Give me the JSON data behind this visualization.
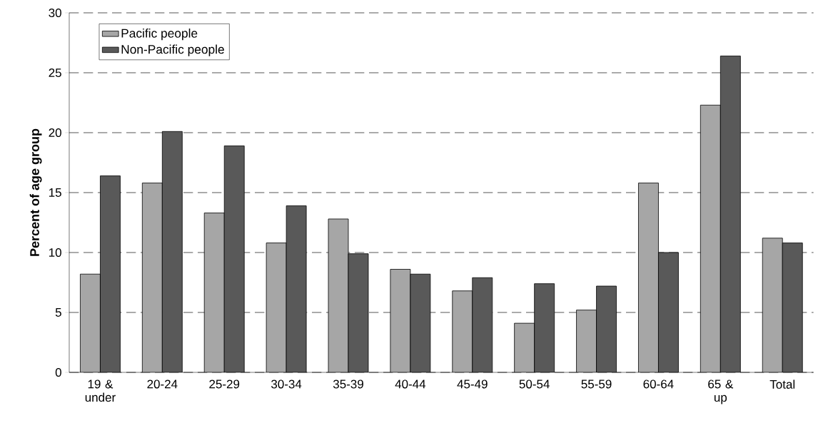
{
  "chart_data": {
    "type": "bar",
    "ylabel": "Percent of age group",
    "categories": [
      "19 & under",
      "20-24",
      "25-29",
      "30-34",
      "35-39",
      "40-44",
      "45-49",
      "50-54",
      "55-59",
      "60-64",
      "65 & up",
      "Total"
    ],
    "series": [
      {
        "name": "Pacific people",
        "color": "#a6a6a6",
        "values": [
          8.2,
          15.8,
          13.3,
          10.8,
          12.8,
          8.6,
          6.8,
          4.1,
          5.2,
          15.8,
          22.3,
          11.2
        ]
      },
      {
        "name": "Non-Pacific people",
        "color": "#595959",
        "values": [
          16.4,
          20.1,
          18.9,
          13.9,
          9.9,
          8.2,
          7.9,
          7.4,
          7.2,
          10.0,
          26.4,
          10.8
        ]
      }
    ],
    "ylim": [
      0,
      30
    ],
    "yticks": [
      0,
      5,
      10,
      15,
      20,
      25,
      30
    ],
    "grid": "y",
    "legend": "top left"
  }
}
